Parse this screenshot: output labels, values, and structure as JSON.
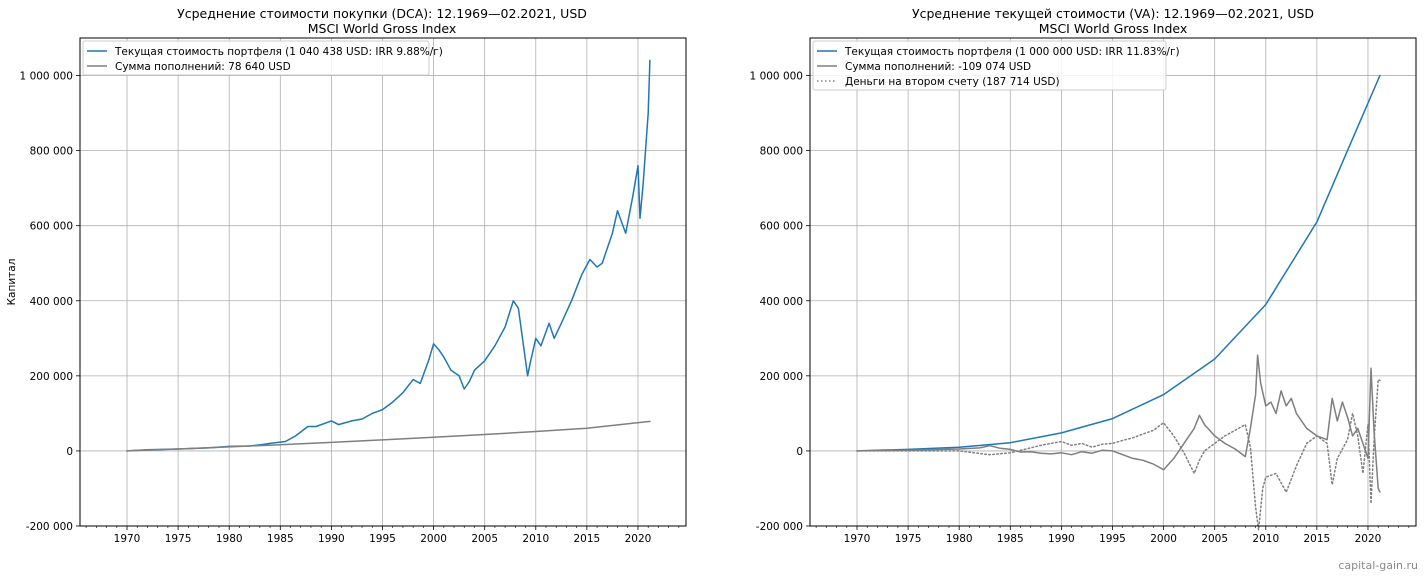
{
  "watermark": "capital-gain.ru",
  "chart_data": [
    {
      "type": "line",
      "title": "Усреднение стоимости покупки (DCA): 12.1969—02.2021, USD",
      "subtitle": "MSCI World Gross Index",
      "xlabel": "",
      "ylabel": "Капитал",
      "xlim": [
        1965.4,
        2024.7
      ],
      "ylim": [
        -200000,
        1100000
      ],
      "x_ticks": [
        1970,
        1975,
        1980,
        1985,
        1990,
        1995,
        2000,
        2005,
        2010,
        2015,
        2020
      ],
      "x_tick_labels": [
        "1970",
        "1975",
        "1980",
        "1985",
        "1990",
        "1995",
        "2000",
        "2005",
        "2010",
        "2015",
        "2020"
      ],
      "y_ticks": [
        -200000,
        0,
        200000,
        400000,
        600000,
        800000,
        1000000
      ],
      "y_tick_labels": [
        "-200 000",
        "0",
        "200 000",
        "400 000",
        "600 000",
        "800 000",
        "1 000 000"
      ],
      "grid": true,
      "legend_position": "top-left",
      "series": [
        {
          "name": "Текущая стоимость портфеля (1 040 438 USD: IRR 9.88%/г)",
          "color": "#1f77b4",
          "style": "solid",
          "points": [
            [
              1970.0,
              0
            ],
            [
              1972.0,
              3000
            ],
            [
              1975.0,
              5000
            ],
            [
              1978.0,
              8000
            ],
            [
              1980.0,
              12000
            ],
            [
              1982.0,
              13000
            ],
            [
              1983.0,
              16000
            ],
            [
              1984.0,
              20000
            ],
            [
              1985.5,
              25000
            ],
            [
              1986.5,
              40000
            ],
            [
              1987.7,
              65000
            ],
            [
              1988.5,
              65000
            ],
            [
              1990.0,
              80000
            ],
            [
              1990.7,
              70000
            ],
            [
              1992.0,
              80000
            ],
            [
              1993.0,
              85000
            ],
            [
              1994.0,
              100000
            ],
            [
              1995.0,
              110000
            ],
            [
              1996.0,
              130000
            ],
            [
              1997.0,
              155000
            ],
            [
              1998.0,
              190000
            ],
            [
              1998.7,
              180000
            ],
            [
              1999.5,
              240000
            ],
            [
              2000.0,
              285000
            ],
            [
              2000.5,
              270000
            ],
            [
              2001.0,
              250000
            ],
            [
              2001.7,
              215000
            ],
            [
              2002.5,
              200000
            ],
            [
              2003.0,
              165000
            ],
            [
              2003.5,
              185000
            ],
            [
              2004.0,
              215000
            ],
            [
              2005.0,
              240000
            ],
            [
              2006.0,
              280000
            ],
            [
              2007.0,
              330000
            ],
            [
              2007.8,
              400000
            ],
            [
              2008.3,
              380000
            ],
            [
              2008.8,
              280000
            ],
            [
              2009.2,
              200000
            ],
            [
              2009.5,
              240000
            ],
            [
              2010.0,
              300000
            ],
            [
              2010.5,
              280000
            ],
            [
              2011.3,
              340000
            ],
            [
              2011.8,
              300000
            ],
            [
              2012.5,
              340000
            ],
            [
              2013.5,
              400000
            ],
            [
              2014.5,
              470000
            ],
            [
              2015.3,
              510000
            ],
            [
              2016.0,
              490000
            ],
            [
              2016.5,
              500000
            ],
            [
              2017.5,
              580000
            ],
            [
              2018.0,
              640000
            ],
            [
              2018.8,
              580000
            ],
            [
              2019.5,
              680000
            ],
            [
              2020.0,
              760000
            ],
            [
              2020.2,
              620000
            ],
            [
              2020.5,
              710000
            ],
            [
              2021.0,
              900000
            ],
            [
              2021.17,
              1040438
            ]
          ]
        },
        {
          "name": "Сумма пополнений: 78 640 USD",
          "color": "#7f7f7f",
          "style": "solid",
          "points": [
            [
              1970.0,
              0
            ],
            [
              1975.0,
              5200
            ],
            [
              1980.0,
              10800
            ],
            [
              1985.0,
              16600
            ],
            [
              1990.0,
              22800
            ],
            [
              1995.0,
              29300
            ],
            [
              2000.0,
              36200
            ],
            [
              2005.0,
              43700
            ],
            [
              2010.0,
              51700
            ],
            [
              2015.0,
              60400
            ],
            [
              2021.17,
              78640
            ]
          ]
        }
      ]
    },
    {
      "type": "line",
      "title": "Усреднение текущей стоимости (VA): 12.1969—02.2021, USD",
      "subtitle": "MSCI World Gross Index",
      "xlabel": "",
      "ylabel": "",
      "xlim": [
        1965.4,
        2024.7
      ],
      "ylim": [
        -200000,
        1100000
      ],
      "x_ticks": [
        1970,
        1975,
        1980,
        1985,
        1990,
        1995,
        2000,
        2005,
        2010,
        2015,
        2020
      ],
      "x_tick_labels": [
        "1970",
        "1975",
        "1980",
        "1985",
        "1990",
        "1995",
        "2000",
        "2005",
        "2010",
        "2015",
        "2020"
      ],
      "y_ticks": [
        -200000,
        0,
        200000,
        400000,
        600000,
        800000,
        1000000
      ],
      "y_tick_labels": [
        "-200 000",
        "0",
        "200 000",
        "400 000",
        "600 000",
        "800 000",
        "1 000 000"
      ],
      "grid": true,
      "legend_position": "top-left",
      "series": [
        {
          "name": "Текущая стоимость портфеля (1 000 000 USD: IRR 11.83%/г)",
          "color": "#1f77b4",
          "style": "solid",
          "points": [
            [
              1970.0,
              0
            ],
            [
              1975.0,
              4000
            ],
            [
              1980.0,
              10000
            ],
            [
              1985.0,
              22000
            ],
            [
              1990.0,
              48000
            ],
            [
              1995.0,
              86000
            ],
            [
              2000.0,
              150000
            ],
            [
              2005.0,
              245000
            ],
            [
              2010.0,
              390000
            ],
            [
              2015.0,
              610000
            ],
            [
              2018.0,
              800000
            ],
            [
              2021.17,
              1000000
            ]
          ]
        },
        {
          "name": "Сумма пополнений: -109 074 USD",
          "color": "#7f7f7f",
          "style": "solid",
          "points": [
            [
              1970.0,
              0
            ],
            [
              1975.0,
              2000
            ],
            [
              1980.0,
              5000
            ],
            [
              1982.0,
              8000
            ],
            [
              1983.0,
              14000
            ],
            [
              1984.0,
              7000
            ],
            [
              1985.0,
              4000
            ],
            [
              1986.0,
              -3000
            ],
            [
              1987.0,
              -2000
            ],
            [
              1988.0,
              -6000
            ],
            [
              1989.0,
              -8000
            ],
            [
              1990.0,
              -5000
            ],
            [
              1991.0,
              -10000
            ],
            [
              1992.0,
              -2000
            ],
            [
              1993.0,
              -6000
            ],
            [
              1994.0,
              2000
            ],
            [
              1995.0,
              0
            ],
            [
              1996.0,
              -10000
            ],
            [
              1997.0,
              -20000
            ],
            [
              1998.0,
              -25000
            ],
            [
              1999.0,
              -35000
            ],
            [
              2000.0,
              -50000
            ],
            [
              2001.0,
              -20000
            ],
            [
              2002.0,
              20000
            ],
            [
              2003.0,
              60000
            ],
            [
              2003.5,
              95000
            ],
            [
              2004.0,
              70000
            ],
            [
              2005.0,
              40000
            ],
            [
              2006.0,
              20000
            ],
            [
              2007.0,
              5000
            ],
            [
              2008.0,
              -15000
            ],
            [
              2008.5,
              60000
            ],
            [
              2009.0,
              150000
            ],
            [
              2009.2,
              255000
            ],
            [
              2009.5,
              180000
            ],
            [
              2010.0,
              120000
            ],
            [
              2010.5,
              130000
            ],
            [
              2011.0,
              100000
            ],
            [
              2011.5,
              160000
            ],
            [
              2012.0,
              120000
            ],
            [
              2012.5,
              140000
            ],
            [
              2013.0,
              100000
            ],
            [
              2014.0,
              60000
            ],
            [
              2015.0,
              40000
            ],
            [
              2016.0,
              30000
            ],
            [
              2016.5,
              140000
            ],
            [
              2017.0,
              80000
            ],
            [
              2017.5,
              130000
            ],
            [
              2018.0,
              90000
            ],
            [
              2018.5,
              40000
            ],
            [
              2019.0,
              60000
            ],
            [
              2019.5,
              20000
            ],
            [
              2020.0,
              -20000
            ],
            [
              2020.3,
              220000
            ],
            [
              2020.6,
              50000
            ],
            [
              2021.0,
              -100000
            ],
            [
              2021.17,
              -109074
            ]
          ]
        },
        {
          "name": "Деньги на втором счету (187 714 USD)",
          "color": "#7f7f7f",
          "style": "dotted",
          "points": [
            [
              1970.0,
              0
            ],
            [
              1980.0,
              0
            ],
            [
              1983.0,
              -10000
            ],
            [
              1985.0,
              -5000
            ],
            [
              1987.0,
              8000
            ],
            [
              1988.0,
              15000
            ],
            [
              1990.0,
              25000
            ],
            [
              1991.0,
              15000
            ],
            [
              1992.0,
              20000
            ],
            [
              1993.0,
              10000
            ],
            [
              1994.0,
              18000
            ],
            [
              1995.0,
              20000
            ],
            [
              1996.0,
              28000
            ],
            [
              1997.0,
              35000
            ],
            [
              1998.0,
              45000
            ],
            [
              1999.0,
              55000
            ],
            [
              2000.0,
              75000
            ],
            [
              2001.0,
              40000
            ],
            [
              2002.0,
              -5000
            ],
            [
              2003.0,
              -60000
            ],
            [
              2003.5,
              -25000
            ],
            [
              2004.0,
              0
            ],
            [
              2005.0,
              20000
            ],
            [
              2006.0,
              40000
            ],
            [
              2007.0,
              55000
            ],
            [
              2008.0,
              70000
            ],
            [
              2008.5,
              10000
            ],
            [
              2009.0,
              -150000
            ],
            [
              2009.3,
              -210000
            ],
            [
              2009.7,
              -100000
            ],
            [
              2010.0,
              -70000
            ],
            [
              2011.0,
              -60000
            ],
            [
              2012.0,
              -110000
            ],
            [
              2013.0,
              -40000
            ],
            [
              2014.0,
              20000
            ],
            [
              2015.0,
              40000
            ],
            [
              2016.0,
              20000
            ],
            [
              2016.5,
              -90000
            ],
            [
              2017.0,
              -20000
            ],
            [
              2018.0,
              30000
            ],
            [
              2018.5,
              100000
            ],
            [
              2019.0,
              40000
            ],
            [
              2019.5,
              -60000
            ],
            [
              2020.0,
              70000
            ],
            [
              2020.3,
              -140000
            ],
            [
              2020.6,
              30000
            ],
            [
              2021.0,
              190000
            ],
            [
              2021.17,
              187714
            ]
          ]
        }
      ]
    }
  ]
}
